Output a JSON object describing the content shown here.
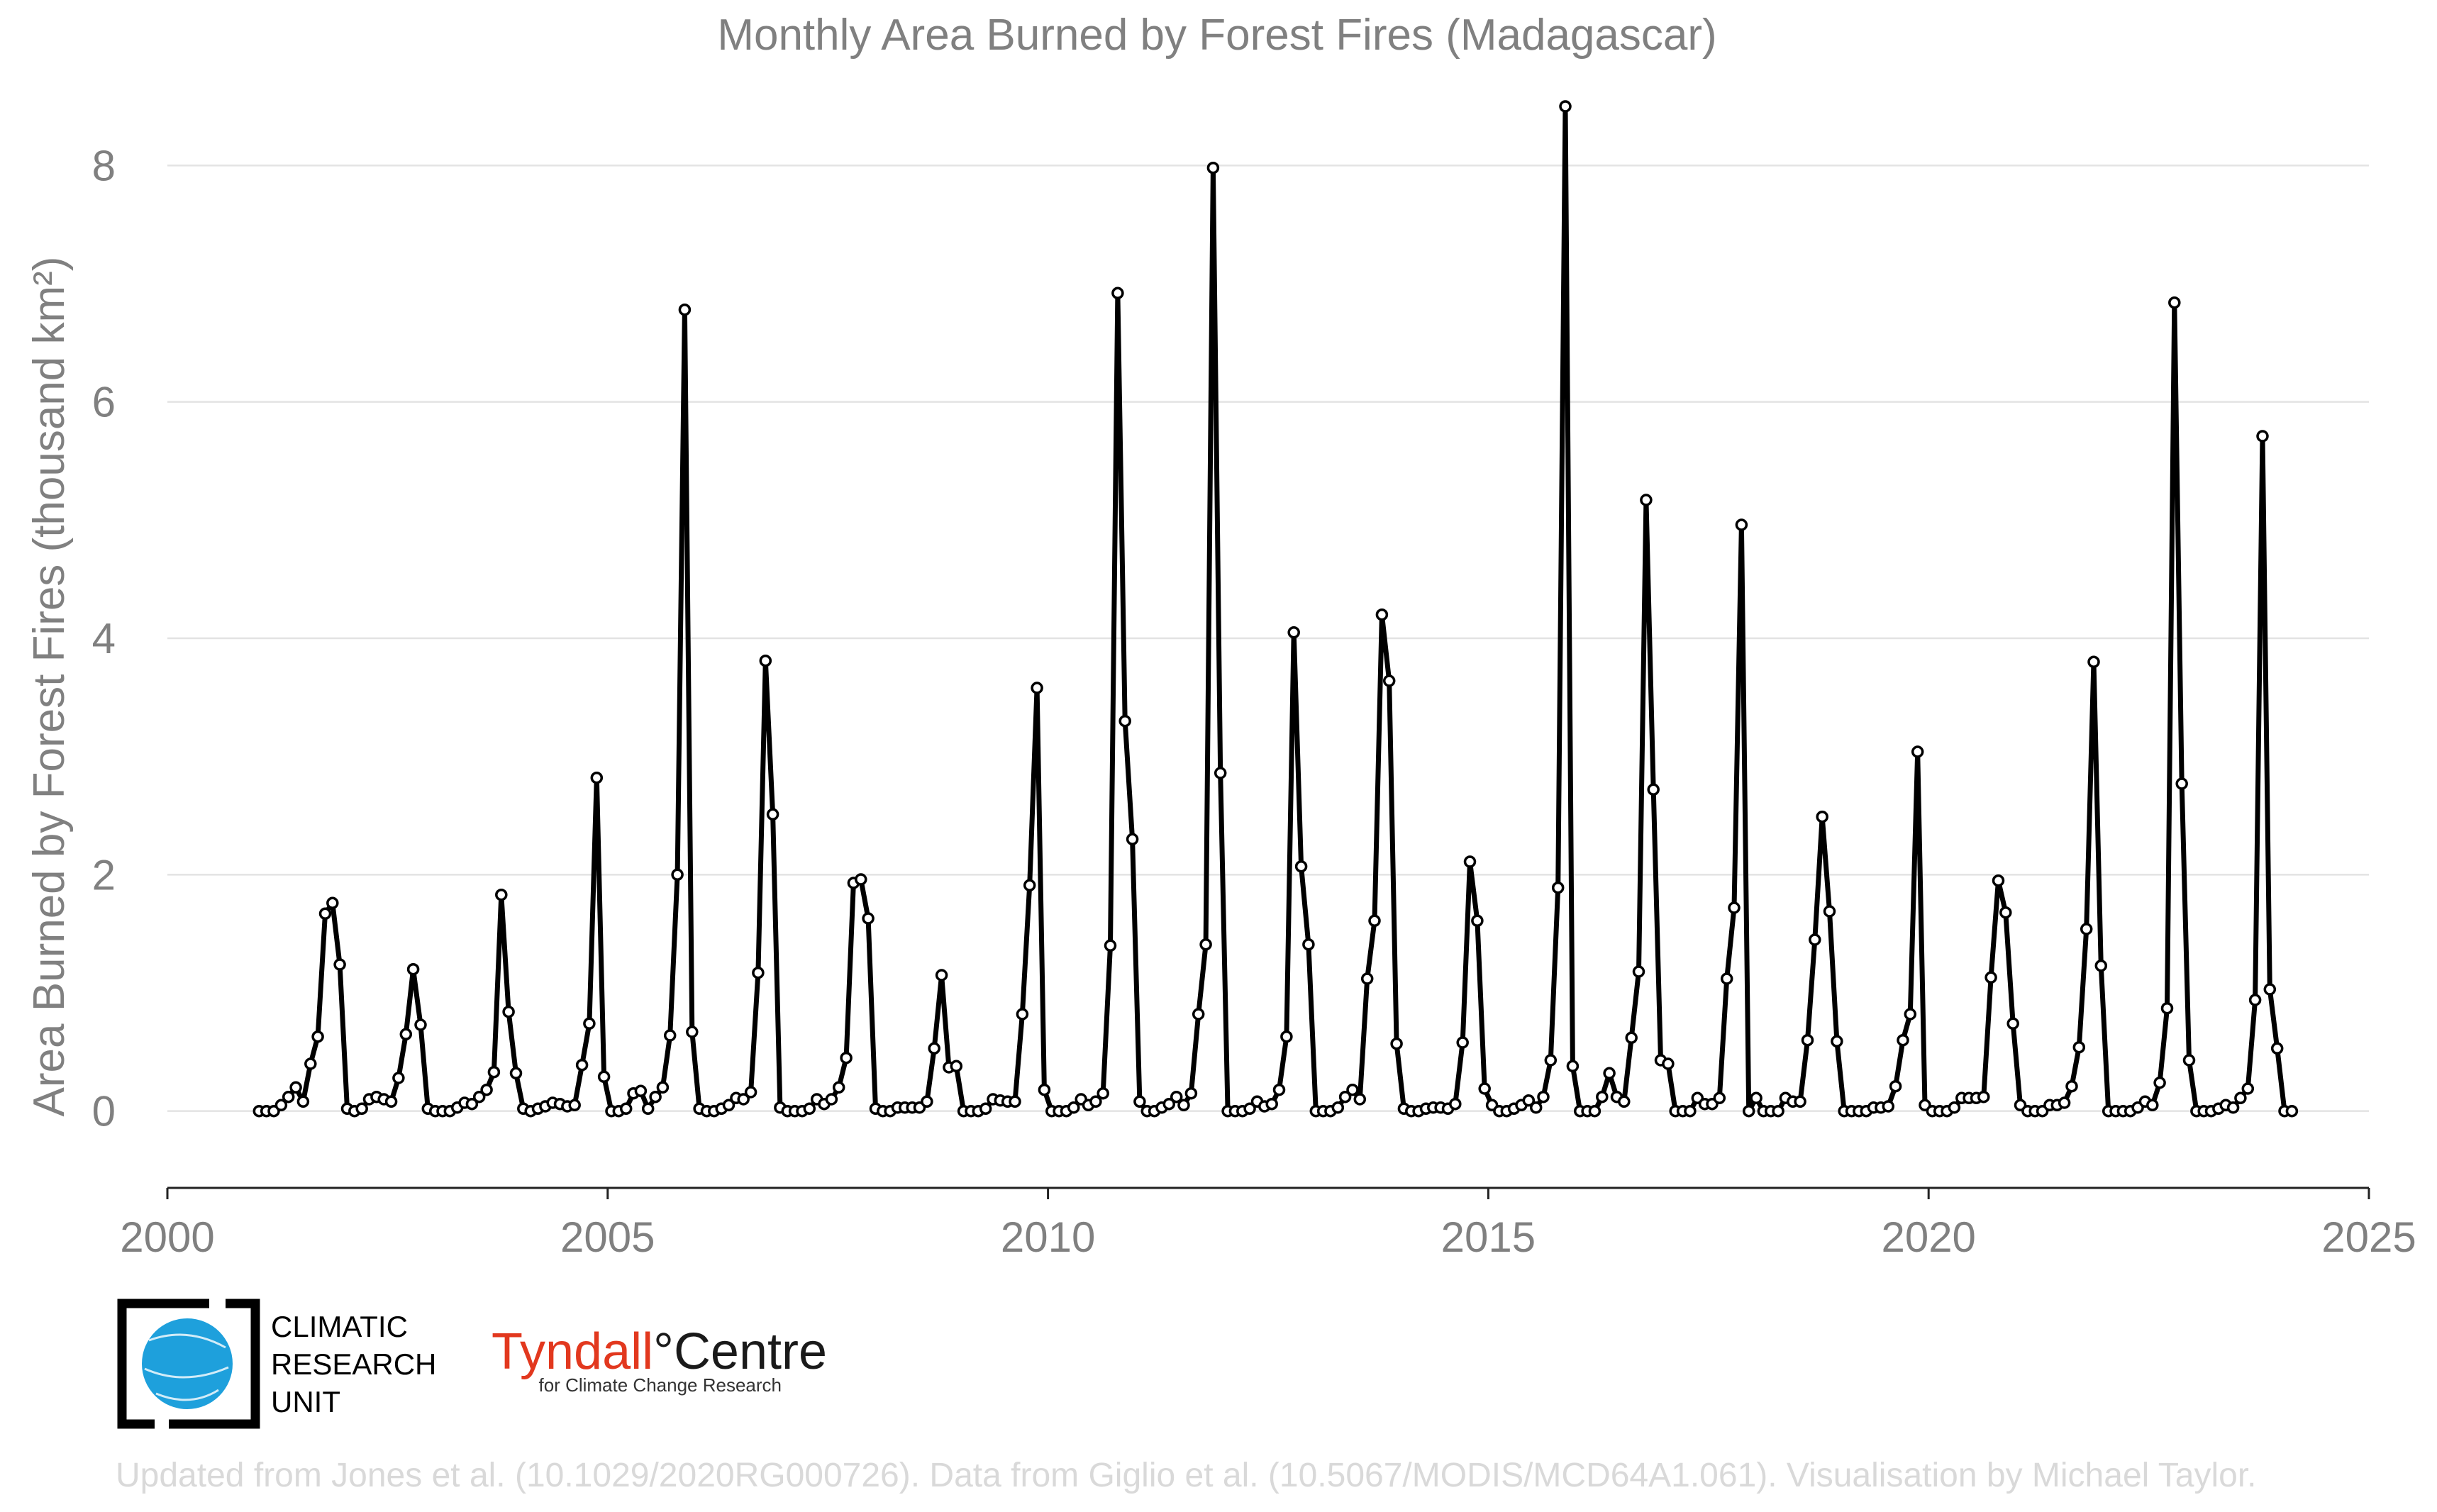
{
  "chart_data": {
    "type": "line",
    "title": "Monthly Area Burned by Forest Fires (Madagascar)",
    "ylabel": "Area Burned by Forest Fires (thousand km²)",
    "xlabel": "",
    "xlim": [
      2000,
      2025
    ],
    "ylim": [
      -0.65,
      8.5
    ],
    "x_ticks": [
      "2000",
      "2005",
      "2010",
      "2015",
      "2020",
      "2025"
    ],
    "y_ticks": [
      "0",
      "2",
      "4",
      "6",
      "8"
    ],
    "grid": "horizontal",
    "marker": "open-circle",
    "series_color": "#000000",
    "start": "2001-01",
    "frequency": "monthly",
    "series": [
      {
        "values": [
          0,
          0,
          0,
          0.05,
          0.12,
          0.2,
          0.08,
          0.4,
          0.63,
          1.67,
          1.76,
          1.24,
          0.02,
          0,
          0.02,
          0.1,
          0.12,
          0.1,
          0.08,
          0.28,
          0.65,
          1.2,
          0.73,
          0.02,
          0,
          0,
          0,
          0.03,
          0.07,
          0.06,
          0.12,
          0.18,
          0.33,
          1.83,
          0.84,
          0.32,
          0.02,
          0,
          0.02,
          0.04,
          0.07,
          0.06,
          0.04,
          0.05,
          0.39,
          0.74,
          2.82,
          0.29,
          0,
          0,
          0.02,
          0.15,
          0.17,
          0.02,
          0.12,
          0.2,
          0.64,
          2.0,
          6.78,
          0.67,
          0.02,
          0,
          0,
          0.02,
          0.05,
          0.11,
          0.1,
          0.16,
          1.17,
          3.81,
          2.51,
          0.03,
          0,
          0,
          0,
          0.02,
          0.1,
          0.06,
          0.1,
          0.2,
          0.45,
          1.93,
          1.96,
          1.63,
          0.02,
          0,
          0,
          0.03,
          0.03,
          0.03,
          0.03,
          0.08,
          0.53,
          1.15,
          0.37,
          0.38,
          0,
          0,
          0,
          0.02,
          0.1,
          0.09,
          0.08,
          0.08,
          0.82,
          1.91,
          3.58,
          0.18,
          0,
          0,
          0,
          0.03,
          0.1,
          0.05,
          0.08,
          0.15,
          1.4,
          6.92,
          3.3,
          2.3,
          0.08,
          0,
          0,
          0.03,
          0.06,
          0.12,
          0.05,
          0.15,
          0.82,
          1.41,
          7.98,
          2.86,
          0,
          0,
          0,
          0.02,
          0.08,
          0.04,
          0.06,
          0.18,
          0.63,
          4.05,
          2.07,
          1.41,
          0,
          0,
          0,
          0.03,
          0.12,
          0.18,
          0.1,
          1.12,
          1.61,
          4.2,
          3.64,
          0.57,
          0.02,
          0,
          0,
          0.02,
          0.03,
          0.03,
          0.02,
          0.06,
          0.58,
          2.11,
          1.61,
          0.19,
          0.05,
          0,
          0,
          0.02,
          0.05,
          0.09,
          0.03,
          0.12,
          0.43,
          1.89,
          8.5,
          0.38,
          0,
          0,
          0,
          0.12,
          0.32,
          0.12,
          0.08,
          0.62,
          1.18,
          5.17,
          2.72,
          0.43,
          0.4,
          0,
          0,
          0,
          0.11,
          0.06,
          0.06,
          0.11,
          1.12,
          1.72,
          4.96,
          0,
          0.11,
          0,
          0,
          0,
          0.11,
          0.08,
          0.08,
          0.6,
          1.45,
          2.49,
          1.69,
          0.59,
          0,
          0,
          0,
          0,
          0.03,
          0.03,
          0.04,
          0.21,
          0.6,
          0.82,
          3.04,
          0.05,
          0,
          0,
          0,
          0.03,
          0.11,
          0.11,
          0.11,
          0.12,
          1.13,
          1.95,
          1.68,
          0.74,
          0.05,
          0,
          0,
          0,
          0.05,
          0.05,
          0.07,
          0.21,
          0.54,
          1.54,
          3.8,
          1.23,
          0,
          0,
          0,
          0,
          0.03,
          0.08,
          0.05,
          0.24,
          0.87,
          6.84,
          2.77,
          0.43,
          0,
          0,
          0,
          0.02,
          0.05,
          0.03,
          0.11,
          0.19,
          0.94,
          5.71,
          1.03,
          0.53,
          0,
          0
        ]
      }
    ]
  },
  "logos": {
    "cru": {
      "lines": [
        "CLIMATIC",
        "RESEARCH",
        "UNIT"
      ],
      "globe_color": "#1ea0dc"
    },
    "tyndall": {
      "name": "Tyndall",
      "degree": "°",
      "suffix": "Centre",
      "tagline": "for Climate Change Research",
      "name_color": "#e2381e"
    }
  },
  "credits": "Updated from Jones et al. (10.1029/2020RG000726). Data from Giglio et al. (10.5067/MODIS/MCD64A1.061). Visualisation by Michael Taylor."
}
